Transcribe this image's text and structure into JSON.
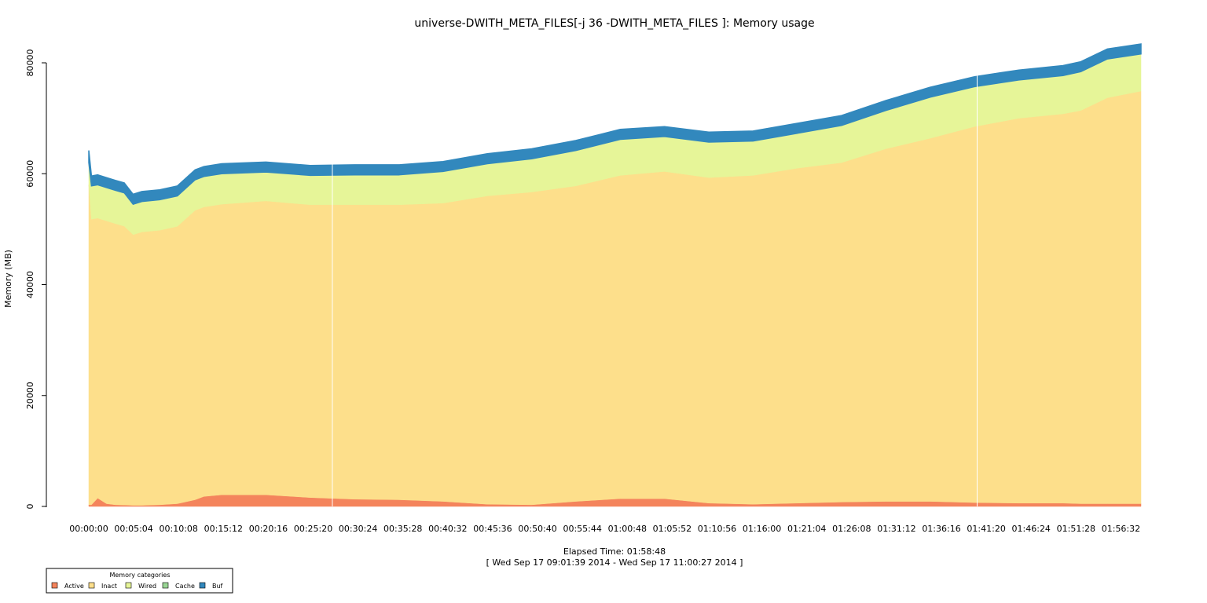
{
  "chart_data": {
    "type": "area",
    "stacked": true,
    "title": "universe-DWITH_META_FILES[-j 36 -DWITH_META_FILES ]: Memory usage",
    "xlabel": "Elapsed Time: 01:58:48",
    "xsublabel": "[ Wed Sep 17 09:01:39 2014 - Wed Sep 17 11:00:27 2014 ]",
    "ylabel": "Memory (MB)",
    "ylim": [
      0,
      80000
    ],
    "xlim_minutes": [
      0,
      118.8
    ],
    "y_ticks": [
      0,
      20000,
      40000,
      60000,
      80000
    ],
    "x_tick_labels": [
      "00:00:00",
      "00:05:04",
      "00:10:08",
      "00:15:12",
      "00:20:16",
      "00:25:20",
      "00:30:24",
      "00:35:28",
      "00:40:32",
      "00:45:36",
      "00:50:40",
      "00:55:44",
      "01:00:48",
      "01:05:52",
      "01:10:56",
      "01:16:00",
      "01:21:04",
      "01:26:08",
      "01:31:12",
      "01:36:16",
      "01:41:20",
      "01:46:24",
      "01:51:28",
      "01:56:32"
    ],
    "x_tick_minutes": [
      0,
      5.0667,
      10.1333,
      15.2,
      20.2667,
      25.3333,
      30.4,
      35.4667,
      40.5333,
      45.6,
      50.6667,
      55.7333,
      60.8,
      65.8667,
      70.9333,
      76.0,
      81.0667,
      86.1333,
      91.2,
      96.2667,
      101.3333,
      106.4,
      111.4667,
      116.5333
    ],
    "x_minutes": [
      0,
      0.3,
      1,
      2,
      3,
      4,
      5,
      6,
      8,
      10,
      12,
      13,
      15,
      20,
      25,
      30,
      35,
      40,
      45,
      50,
      55,
      60,
      65,
      70,
      75,
      80,
      85,
      90,
      95,
      100,
      105,
      110,
      112,
      115,
      118.8
    ],
    "series": [
      {
        "name": "Active",
        "color": "#f4845c",
        "values": [
          300,
          300,
          1500,
          500,
          300,
          250,
          200,
          200,
          300,
          500,
          1200,
          1800,
          2100,
          2100,
          1600,
          1300,
          1200,
          900,
          400,
          300,
          900,
          1400,
          1400,
          600,
          400,
          600,
          800,
          900,
          900,
          700,
          600,
          600,
          500,
          500,
          500
        ]
      },
      {
        "name": "Inact",
        "color": "#fddf8b",
        "values": [
          57700,
          51500,
          50500,
          51000,
          50700,
          50300,
          48800,
          49300,
          49500,
          50000,
          52200,
          52200,
          52400,
          53000,
          52800,
          53100,
          53200,
          53800,
          55600,
          56400,
          56900,
          58300,
          59000,
          58700,
          59300,
          60400,
          61200,
          63600,
          65500,
          67800,
          69400,
          70200,
          70900,
          73200,
          74400
        ]
      },
      {
        "name": "Wired",
        "color": "#e6f598",
        "values": [
          4000,
          6000,
          6000,
          6000,
          6000,
          6000,
          5500,
          5500,
          5500,
          5500,
          5500,
          5500,
          5500,
          5200,
          5300,
          5400,
          5400,
          5700,
          5800,
          6000,
          6400,
          6500,
          6300,
          6400,
          6200,
          6300,
          6700,
          6900,
          7400,
          7200,
          6900,
          6900,
          7000,
          7000,
          6700
        ]
      },
      {
        "name": "Cache",
        "color": "#99d594",
        "values": []
      },
      {
        "name": "Buf",
        "color": "#3288bd",
        "values": [
          2200,
          1800,
          1800,
          1800,
          1800,
          1800,
          1800,
          1800,
          1800,
          1800,
          1800,
          1800,
          1800,
          1800,
          1800,
          1800,
          1800,
          1800,
          1800,
          1800,
          1800,
          1800,
          1800,
          1800,
          1800,
          1800,
          1800,
          1800,
          1800,
          1800,
          1800,
          1800,
          1800,
          1800,
          1800
        ]
      }
    ],
    "legend": {
      "title": "Memory categories",
      "position": "bottom-left",
      "entries": [
        "Active",
        "Inact",
        "Wired",
        "Cache",
        "Buf"
      ]
    },
    "vertical_gridlines_minutes": [
      27.5,
      100.3
    ]
  }
}
